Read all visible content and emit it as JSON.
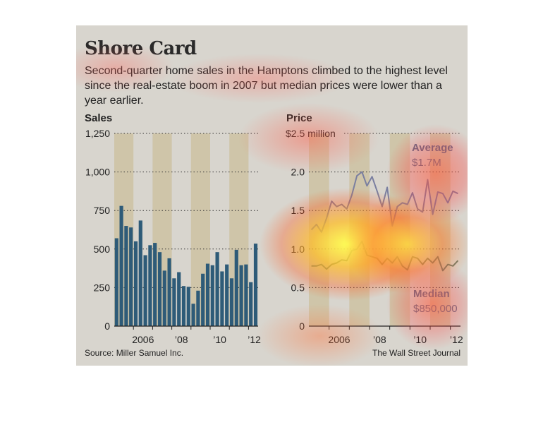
{
  "header": {
    "title": "Shore Card",
    "subtitle": "Second-quarter home sales in the Hamptons climbed to the highest level since the real-estate boom in 2007 but median prices were lower than a year earlier."
  },
  "footer": {
    "source": "Source: Miller Samuel Inc.",
    "credit": "The Wall Street Journal"
  },
  "colors": {
    "bar": "#2e5b78",
    "average_line": "#7a7fa0",
    "median_line": "#6a7a6a",
    "band": "#c8b88a",
    "grid": "#333333"
  },
  "chart_data": [
    {
      "type": "bar",
      "title": "Sales",
      "ylim": [
        0,
        1250
      ],
      "yticks": [
        0,
        250,
        500,
        750,
        1000,
        1250
      ],
      "ytick_labels": [
        "0",
        "250",
        "500",
        "750",
        "1,000",
        "1,250"
      ],
      "xtick_labels": [
        {
          "label": "2006",
          "position": 2006.5
        },
        {
          "label": "’08",
          "position": 2008.5
        },
        {
          "label": "’10",
          "position": 2010.5
        },
        {
          "label": "’12",
          "position": 2012.3
        }
      ],
      "x_start": 2005,
      "bars_per_year": 4,
      "shaded_years": [
        2005,
        2007,
        2009,
        2011
      ],
      "values": [
        570,
        780,
        650,
        640,
        550,
        685,
        460,
        525,
        540,
        480,
        360,
        440,
        310,
        350,
        260,
        255,
        145,
        230,
        340,
        405,
        395,
        480,
        355,
        400,
        310,
        495,
        395,
        400,
        285,
        535
      ]
    },
    {
      "type": "line",
      "title": "Price",
      "ylim": [
        0,
        2.5
      ],
      "yticks": [
        0,
        0.5,
        1.0,
        1.5,
        2.0,
        2.5
      ],
      "ytick_labels": [
        "0",
        "0.5",
        "1.0",
        "1.5",
        "2.0",
        "$2.5 million"
      ],
      "xtick_labels": [
        {
          "label": "2006",
          "position": 2006.5
        },
        {
          "label": "’08",
          "position": 2008.5
        },
        {
          "label": "’10",
          "position": 2010.5
        },
        {
          "label": "’12",
          "position": 2012.3
        }
      ],
      "x_start": 2005,
      "points_per_year": 4,
      "shaded_years": [
        2005,
        2007,
        2009,
        2011
      ],
      "series": [
        {
          "name": "Average",
          "value_label": "$1.7M",
          "values": [
            1.25,
            1.32,
            1.22,
            1.4,
            1.62,
            1.55,
            1.58,
            1.52,
            1.7,
            1.95,
            2.0,
            1.82,
            1.94,
            1.75,
            1.55,
            1.8,
            1.3,
            1.55,
            1.6,
            1.58,
            1.73,
            1.52,
            1.48,
            1.9,
            1.45,
            1.74,
            1.72,
            1.6,
            1.75,
            1.72
          ]
        },
        {
          "name": "Median",
          "value_label": "$850,000",
          "values": [
            0.78,
            0.78,
            0.8,
            0.74,
            0.8,
            0.82,
            0.86,
            0.85,
            0.98,
            1.0,
            1.1,
            0.92,
            0.9,
            0.88,
            0.8,
            0.88,
            0.82,
            0.9,
            0.78,
            0.73,
            0.9,
            0.88,
            0.8,
            0.88,
            0.82,
            0.9,
            0.72,
            0.8,
            0.78,
            0.85
          ]
        }
      ]
    }
  ]
}
